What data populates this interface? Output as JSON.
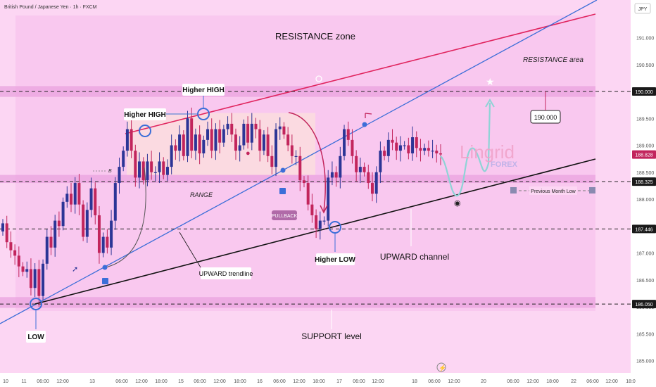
{
  "header": {
    "symbol": "British Pound / Japanese Yen · 1h · FXCM",
    "currency": "JPY"
  },
  "colors": {
    "background": "#fcd6f3",
    "band": "#e9a3df",
    "range_box": "#fbdedd",
    "bull": "#2c3596",
    "bear": "#c2255c",
    "resistance_line": "#e0245e",
    "trendline": "#3c6ed8",
    "channel": "#111111",
    "projection": "#8fd3d6"
  },
  "annotations": {
    "resistance_zone": "RESISTANCE zone",
    "resistance_area": "RESISTANCE area",
    "higher_high_1": "Higher HIGH",
    "higher_high_2": "Higher HIGH",
    "range": "RANGE",
    "pullback": "PULLBACK",
    "upward_trendline": "UPWARD trendline",
    "upward_channel": "UPWARD channel",
    "higher_low": "Higher LOW",
    "low": "LOW",
    "support_level": "SUPPORT level",
    "previous_month_low": "Previous Month Low",
    "target": "190.000",
    "marker_b": "B"
  },
  "watermark": {
    "name": "Lingrid",
    "sub": "FOREX"
  },
  "chart_data": {
    "type": "candlestick",
    "title": "British Pound / Japanese Yen · 1h · FXCM",
    "y_unit": "JPY",
    "ylim": [
      184.84,
      191.45
    ],
    "y_ticks": [
      185.0,
      185.5,
      186.0,
      186.5,
      187.0,
      187.5,
      188.0,
      188.5,
      189.0,
      189.5,
      190.0,
      190.5,
      191.0
    ],
    "x_tick_labels": [
      "10",
      "11",
      "06:00",
      "12:00",
      "13",
      "06:00",
      "12:00",
      "18:00",
      "15",
      "06:00",
      "12:00",
      "18:00",
      "16",
      "06:00",
      "12:00",
      "18:00",
      "17",
      "06:00",
      "12:00",
      "18",
      "06:00",
      "12:00",
      "20",
      "06:00",
      "12:00",
      "18:00",
      "22",
      "06:00",
      "12:00",
      "18:0"
    ],
    "levels": [
      {
        "value": 190.0,
        "label": "190.000"
      },
      {
        "value": 188.828,
        "label": "188.828"
      },
      {
        "value": 188.325,
        "label": "188.325"
      },
      {
        "value": 187.446,
        "label": "187.446"
      },
      {
        "value": 186.05,
        "label": "186.050"
      }
    ],
    "zones": [
      {
        "name": "resistance band",
        "from": 189.9,
        "to": 190.1
      },
      {
        "name": "range band",
        "from": 188.3,
        "to": 188.45
      },
      {
        "name": "support band",
        "from": 185.98,
        "to": 186.18
      }
    ],
    "range_box": {
      "from": 188.45,
      "to": 189.6
    },
    "closes": [
      187.55,
      187.2,
      187.05,
      186.95,
      186.75,
      186.65,
      186.7,
      186.35,
      186.7,
      186.2,
      186.8,
      187.3,
      187.1,
      187.6,
      187.5,
      187.95,
      188.1,
      187.9,
      188.3,
      187.9,
      187.3,
      187.8,
      188.2,
      187.7,
      187.0,
      187.3,
      187.1,
      187.6,
      188.3,
      188.6,
      188.9,
      189.3,
      188.9,
      188.4,
      188.7,
      188.35,
      188.7,
      188.5,
      188.5,
      188.7,
      188.45,
      188.6,
      189.0,
      188.9,
      189.2,
      188.8,
      189.5,
      188.9,
      189.2,
      188.85,
      189.1,
      189.3,
      188.9,
      189.3,
      189.05,
      189.3,
      189.4,
      189.2,
      188.9,
      189.0,
      189.4,
      189.05,
      189.4,
      189.3,
      188.9,
      189.2,
      188.8,
      188.6,
      189.3,
      189.35,
      189.2,
      189.0,
      188.8,
      188.8,
      188.35,
      188.3,
      187.9,
      187.7,
      187.45,
      187.6,
      187.6,
      188.4,
      188.5,
      188.4,
      188.8,
      189.3,
      189.1,
      188.8,
      188.5,
      188.6,
      188.5,
      188.3,
      188.1,
      188.5,
      188.9,
      188.8,
      189.1,
      189.05,
      188.9,
      189.0,
      189.0,
      188.85,
      189.15,
      188.95,
      188.9,
      188.95,
      188.9,
      188.9,
      188.85,
      188.83
    ]
  }
}
